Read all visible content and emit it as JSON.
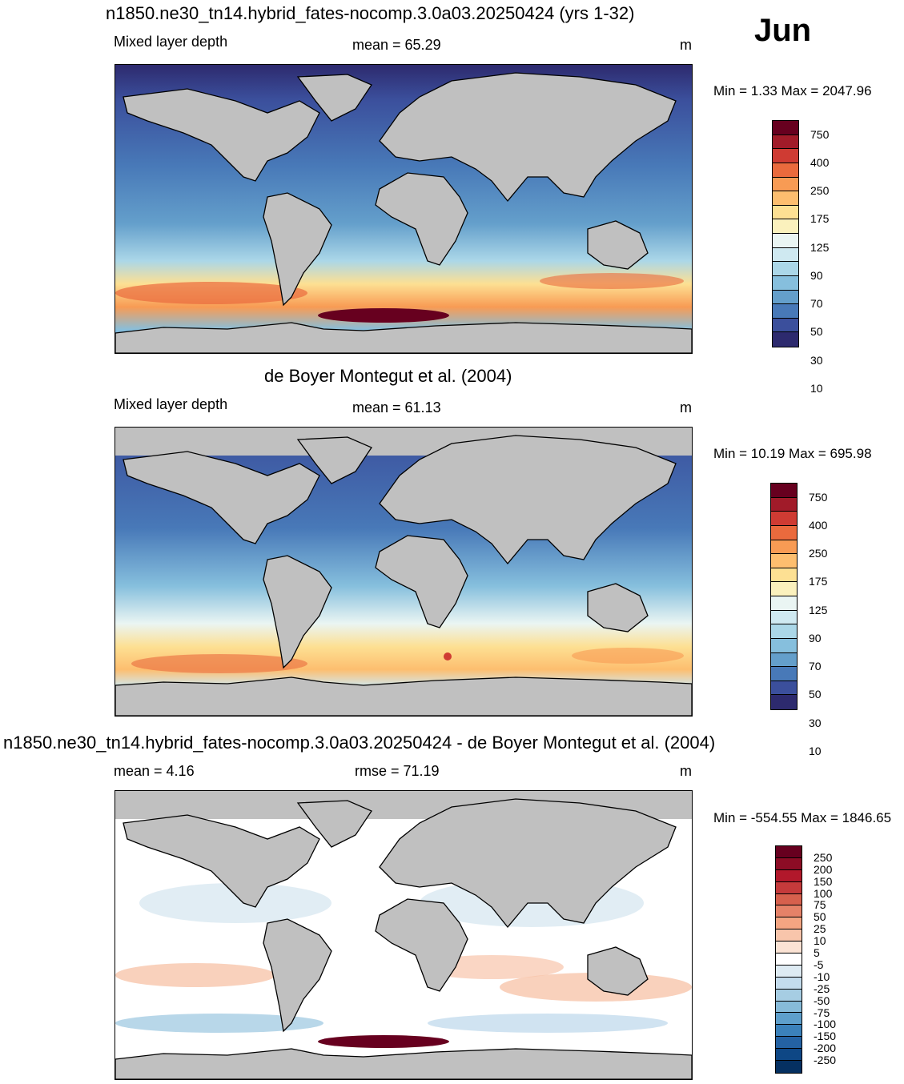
{
  "month_label": "Jun",
  "panels": [
    {
      "title": "n1850.ne30_tn14.hybrid_fates-nocomp.3.0a03.20250424 (yrs 1-32)",
      "left_label": "Mixed layer depth",
      "center_label": "mean =  65.29",
      "unit": "m",
      "minmax": "Min =   1.33 Max = 2047.96",
      "colorbar": {
        "labels": [
          "750",
          "400",
          "250",
          "175",
          "125",
          "90",
          "70",
          "50",
          "30",
          "10"
        ],
        "colors": [
          "#67001f",
          "#a11b29",
          "#cf3b33",
          "#ea6a3d",
          "#f89b54",
          "#fdbe6f",
          "#fde093",
          "#fbf1bd",
          "#eaf5f3",
          "#cfe9f1",
          "#abd7e8",
          "#86bfdd",
          "#649fcb",
          "#4879b8",
          "#3b4f9c",
          "#2d2a6e"
        ]
      }
    },
    {
      "title": "de Boyer Montegut et al. (2004)",
      "left_label": "Mixed layer depth",
      "center_label": "mean =  61.13",
      "unit": "m",
      "minmax": "Min =  10.19 Max = 695.98",
      "colorbar": {
        "labels": [
          "750",
          "400",
          "250",
          "175",
          "125",
          "90",
          "70",
          "50",
          "30",
          "10"
        ],
        "colors": [
          "#67001f",
          "#a11b29",
          "#cf3b33",
          "#ea6a3d",
          "#f89b54",
          "#fdbe6f",
          "#fde093",
          "#fbf1bd",
          "#eaf5f3",
          "#cfe9f1",
          "#abd7e8",
          "#86bfdd",
          "#649fcb",
          "#4879b8",
          "#3b4f9c",
          "#2d2a6e"
        ]
      }
    },
    {
      "title": "n1850.ne30_tn14.hybrid_fates-nocomp.3.0a03.20250424 - de Boyer Montegut et al. (2004)",
      "left_label": "mean =   4.16",
      "center_label": "rmse =  71.19",
      "unit": "m",
      "minmax": "Min = -554.55 Max = 1846.65",
      "colorbar": {
        "labels": [
          "250",
          "200",
          "150",
          "100",
          "75",
          "50",
          "25",
          "10",
          "5",
          "-5",
          "-10",
          "-25",
          "-50",
          "-75",
          "-100",
          "-150",
          "-200",
          "-250"
        ],
        "colors": [
          "#67001f",
          "#8c0c25",
          "#b2182b",
          "#c53a3b",
          "#d6604d",
          "#e58268",
          "#f4a582",
          "#f8c5ab",
          "#fbe3d4",
          "#ffffff",
          "#deebf3",
          "#c4dced",
          "#a6cde3",
          "#87bbd9",
          "#5e9fcb",
          "#3b81ba",
          "#2462a3",
          "#0e4785",
          "#053061"
        ]
      }
    }
  ]
}
